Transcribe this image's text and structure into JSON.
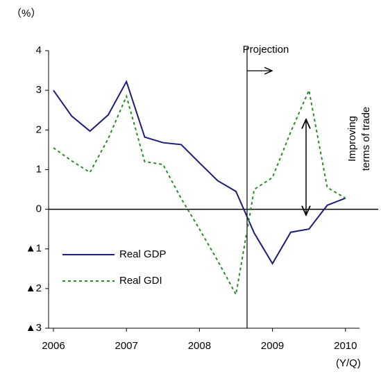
{
  "chart_data": {
    "type": "line",
    "y_unit": "（%）",
    "x_unit": "(Y/Q)",
    "annotations": [
      "Projection",
      "Improving",
      "terms of trade"
    ],
    "categories": [
      "2006",
      null,
      null,
      null,
      "2007",
      null,
      null,
      null,
      "2008",
      null,
      null,
      null,
      "2009",
      null,
      null,
      null,
      "2010"
    ],
    "series": [
      {
        "name": "Real GDP",
        "color": "#1c1c78",
        "dash": "solid",
        "values": [
          3.0,
          2.35,
          1.97,
          2.38,
          3.22,
          1.82,
          1.68,
          1.63,
          1.17,
          0.72,
          0.45,
          -0.6,
          -1.37,
          -0.58,
          -0.5,
          0.1,
          0.28
        ]
      },
      {
        "name": "Real GDI",
        "color": "#2a8a2a",
        "dash": "dashed",
        "values": [
          1.55,
          1.22,
          0.93,
          1.78,
          2.85,
          1.2,
          1.13,
          0.27,
          -0.5,
          -1.3,
          -2.15,
          0.5,
          0.8,
          1.95,
          3.0,
          0.55,
          0.28
        ]
      }
    ],
    "ylim": [
      -3,
      4
    ],
    "yticks": [
      {
        "value": -3,
        "label": "▲3"
      },
      {
        "value": -2,
        "label": "▲2"
      },
      {
        "value": -1,
        "label": "▲1"
      },
      0,
      1,
      2,
      3,
      4
    ]
  }
}
